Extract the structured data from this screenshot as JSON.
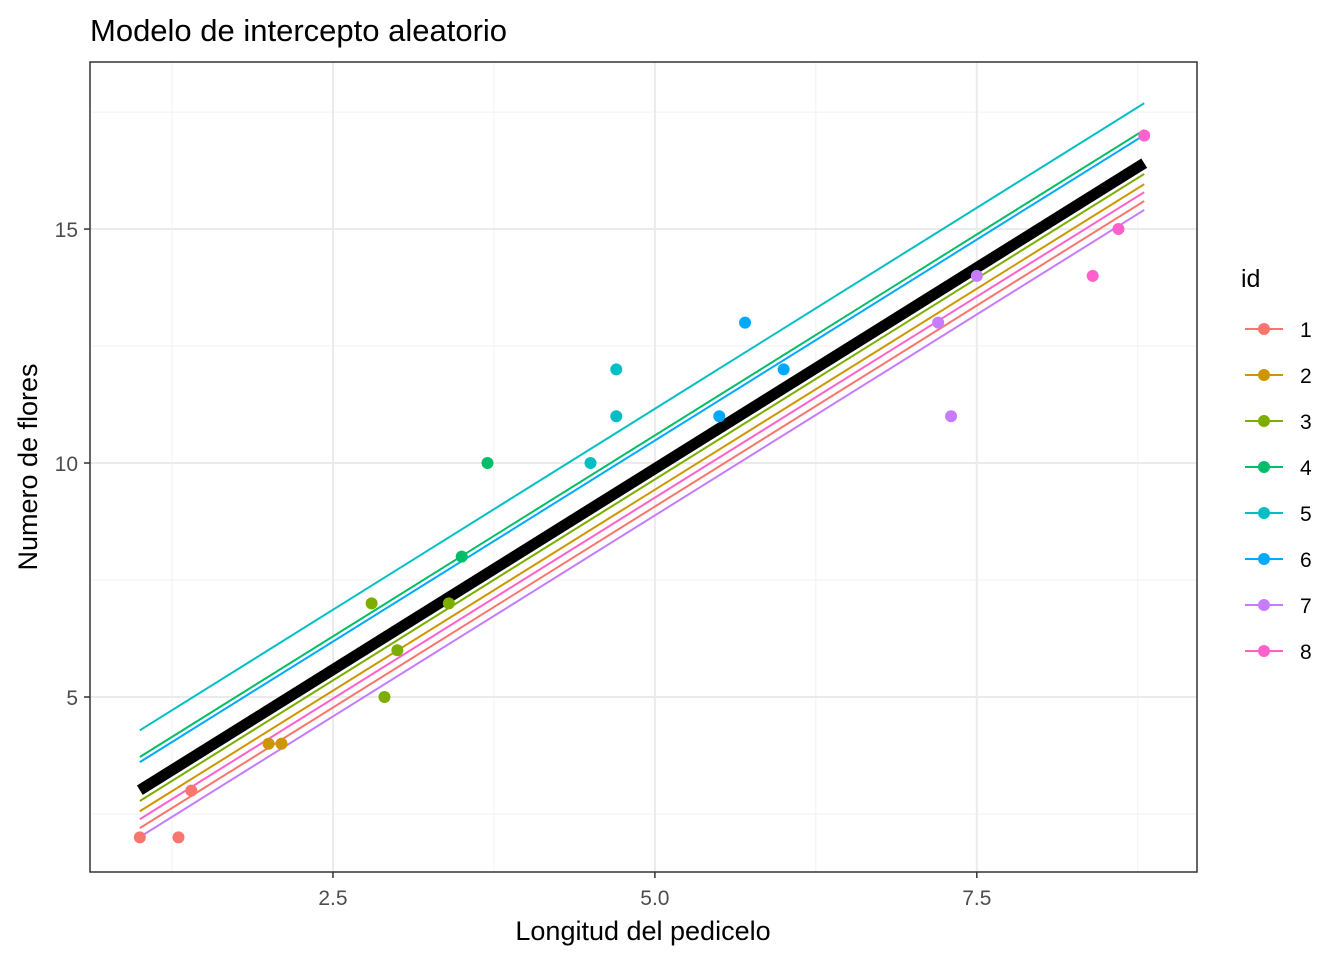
{
  "chart_data": {
    "type": "scatter",
    "title": "Modelo de intercepto aleatorio",
    "xlabel": "Longitud del pedicelo",
    "ylabel": "Numero de flores",
    "xlim": [
      0.613,
      9.21
    ],
    "ylim": [
      1.26,
      18.57
    ],
    "xticks": [
      2.5,
      5.0,
      7.5
    ],
    "xtick_labels": [
      "2.5",
      "5.0",
      "7.5"
    ],
    "yticks": [
      5,
      10,
      15
    ],
    "ytick_labels": [
      "5",
      "10",
      "15"
    ],
    "grid": true,
    "legend": {
      "title": "id",
      "placement": "right"
    },
    "fixed_line": {
      "intercept": 1.29,
      "slope": 1.718,
      "x_range": [
        1.0,
        8.8
      ],
      "color": "#000000"
    },
    "series": [
      {
        "name": "1",
        "color": "#F8766D",
        "intercept_offset": -0.81,
        "points": [
          [
            1.0,
            2
          ],
          [
            1.3,
            2
          ],
          [
            1.4,
            3
          ]
        ]
      },
      {
        "name": "2",
        "color": "#CD9600",
        "intercept_offset": -0.45,
        "points": [
          [
            2.0,
            4
          ],
          [
            2.1,
            4
          ]
        ]
      },
      {
        "name": "3",
        "color": "#7CAE00",
        "intercept_offset": -0.23,
        "points": [
          [
            2.8,
            7
          ],
          [
            2.9,
            5
          ],
          [
            3.0,
            6
          ],
          [
            3.4,
            7
          ]
        ]
      },
      {
        "name": "4",
        "color": "#00BE67",
        "intercept_offset": 0.71,
        "points": [
          [
            3.5,
            8
          ],
          [
            3.7,
            10
          ]
        ]
      },
      {
        "name": "5",
        "color": "#00BFC4",
        "intercept_offset": 1.28,
        "points": [
          [
            4.5,
            10
          ],
          [
            4.7,
            11
          ],
          [
            4.7,
            12
          ]
        ]
      },
      {
        "name": "6",
        "color": "#00A9FF",
        "intercept_offset": 0.6,
        "points": [
          [
            5.5,
            11
          ],
          [
            5.7,
            13
          ],
          [
            6.0,
            12
          ]
        ]
      },
      {
        "name": "7",
        "color": "#C77CFF",
        "intercept_offset": -1.0,
        "points": [
          [
            7.2,
            13
          ],
          [
            7.3,
            11
          ],
          [
            7.5,
            14
          ]
        ]
      },
      {
        "name": "8",
        "color": "#FF61CC",
        "intercept_offset": -0.62,
        "points": [
          [
            8.4,
            14
          ],
          [
            8.6,
            15
          ],
          [
            8.8,
            17
          ]
        ]
      }
    ]
  }
}
